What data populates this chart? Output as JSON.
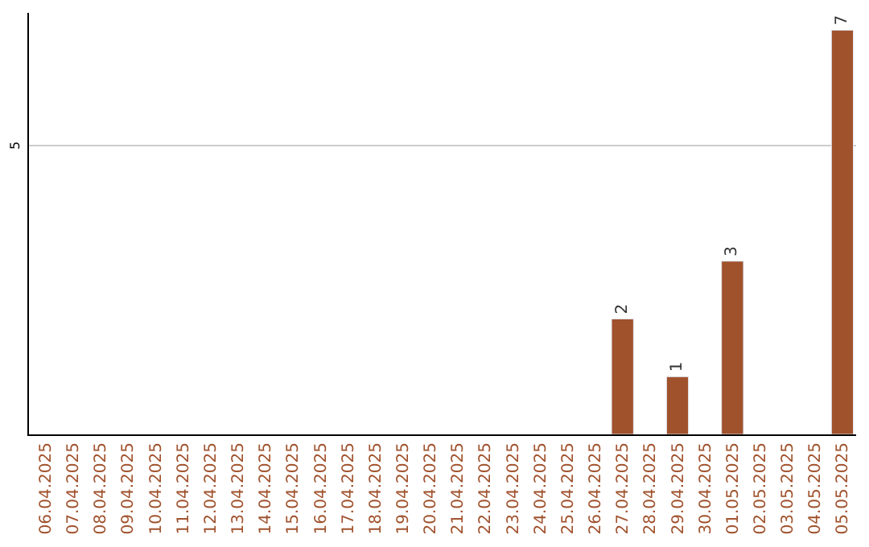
{
  "chart_data": {
    "type": "bar",
    "categories": [
      "06.04.2025",
      "07.04.2025",
      "08.04.2025",
      "09.04.2025",
      "10.04.2025",
      "11.04.2025",
      "12.04.2025",
      "13.04.2025",
      "14.04.2025",
      "15.04.2025",
      "16.04.2025",
      "17.04.2025",
      "18.04.2025",
      "19.04.2025",
      "20.04.2025",
      "21.04.2025",
      "22.04.2025",
      "23.04.2025",
      "24.04.2025",
      "25.04.2025",
      "26.04.2025",
      "27.04.2025",
      "28.04.2025",
      "29.04.2025",
      "30.04.2025",
      "01.05.2025",
      "02.05.2025",
      "03.05.2025",
      "04.05.2025",
      "05.05.2025"
    ],
    "values": [
      null,
      null,
      null,
      null,
      null,
      null,
      null,
      null,
      null,
      null,
      null,
      null,
      null,
      null,
      null,
      null,
      null,
      null,
      null,
      null,
      null,
      2,
      null,
      1,
      null,
      3,
      null,
      null,
      null,
      7
    ],
    "data_labels": true,
    "color": "#a0522d",
    "ylim": [
      0,
      7.3
    ],
    "ref_lines": [
      {
        "axis": "y",
        "value": 5,
        "label": "5",
        "color": "#cccccc"
      }
    ],
    "legend": false
  }
}
